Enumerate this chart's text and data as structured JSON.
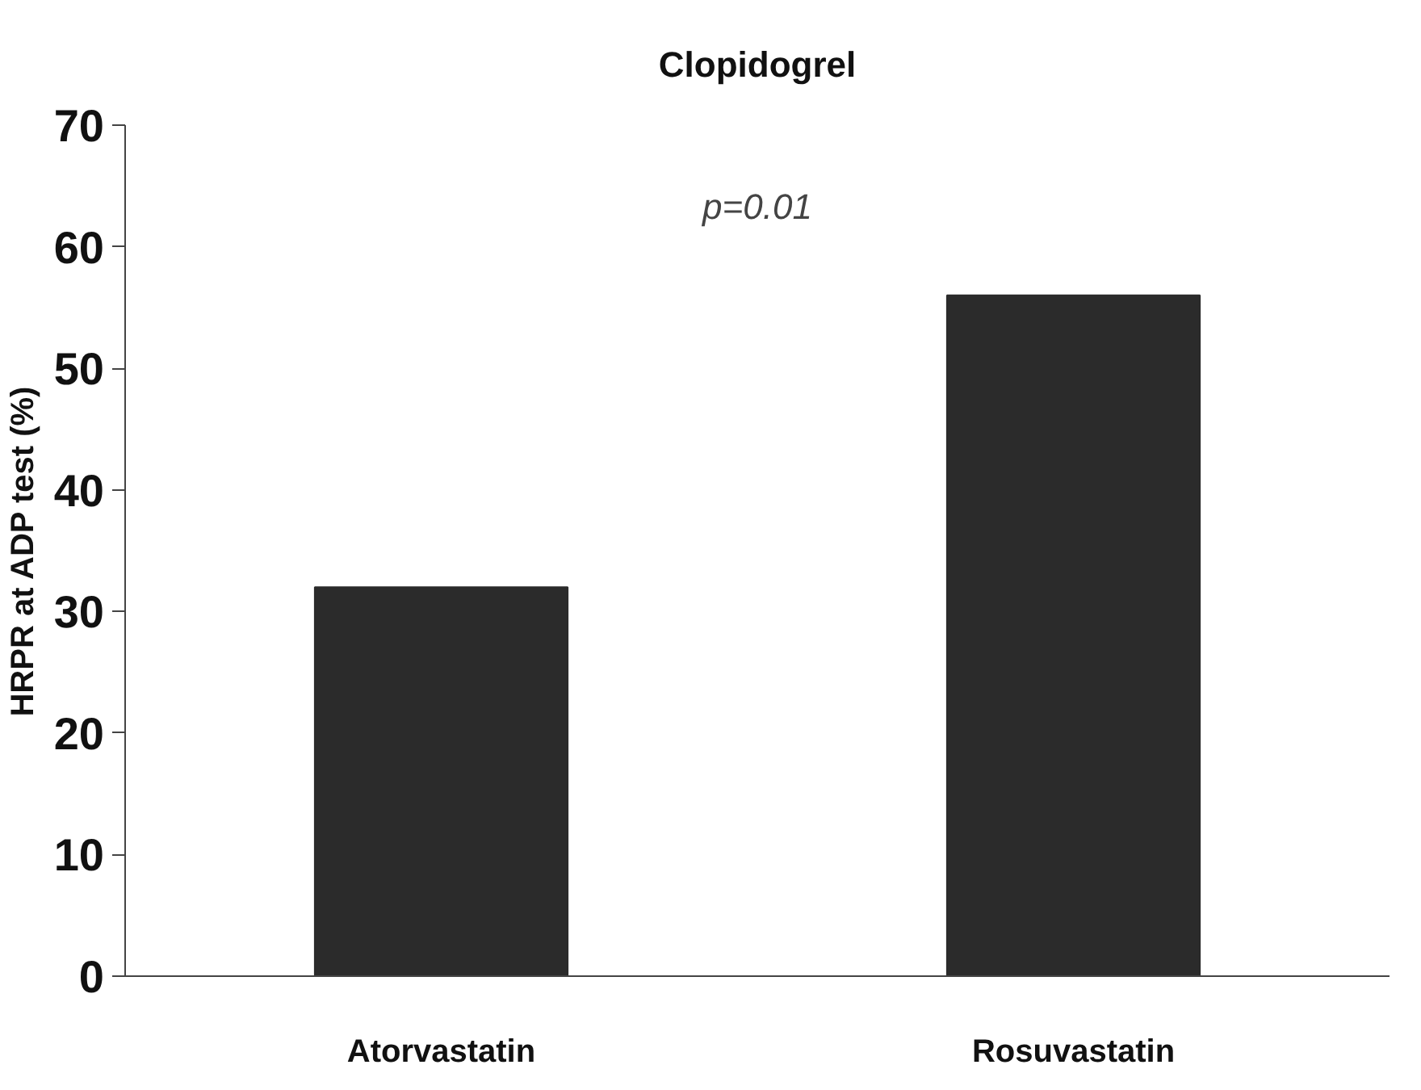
{
  "chart_data": {
    "type": "bar",
    "title": "Clopidogrel",
    "ylabel": "HRPR at ADP test (%)",
    "categories": [
      "Atorvastatin",
      "Rosuvastatin"
    ],
    "values": [
      32,
      56
    ],
    "color": "#2b2b2b",
    "ylim": [
      0,
      70
    ],
    "yticks": [
      0,
      10,
      20,
      30,
      40,
      50,
      60,
      70
    ],
    "annotations": [
      "p=0.01"
    ],
    "grid": false
  }
}
